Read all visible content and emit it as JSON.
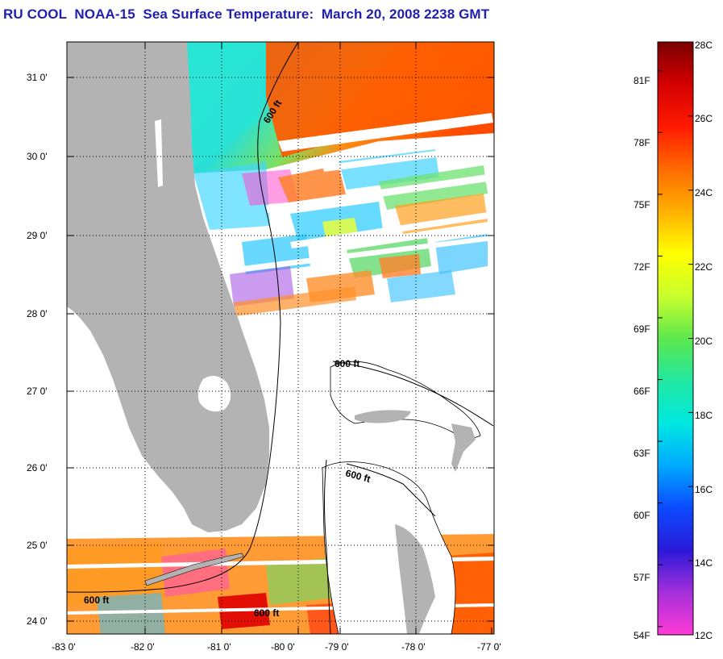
{
  "title": "RU COOL  NOAA-15  Sea Surface Temperature:  March 20, 2008 2238 GMT",
  "map": {
    "lat_ticks": [
      "31 0'",
      "30 0'",
      "29 0'",
      "28 0'",
      "27 0'",
      "26 0'",
      "25 0'",
      "24 0'"
    ],
    "lon_ticks": [
      "-83 0'",
      "-82 0'",
      "-81 0'",
      "-80 0'",
      "-79 0'",
      "-78 0'",
      "-77 0'"
    ],
    "isobath_labels": [
      "600 ft",
      "600 ft",
      "600 ft",
      "600 ft",
      "600 ft"
    ],
    "colors": {
      "land": "#b3b3b3",
      "no_data": "#ffffff",
      "grid": "#000000",
      "isobath": "#000000"
    }
  },
  "colorbar": {
    "fahrenheit_labels": [
      "81F",
      "78F",
      "75F",
      "72F",
      "69F",
      "66F",
      "63F",
      "60F",
      "57F",
      "54F"
    ],
    "celsius_labels": [
      "28C",
      "26C",
      "24C",
      "22C",
      "20C",
      "18C",
      "16C",
      "14C",
      "12C"
    ],
    "range_c": [
      12,
      28
    ],
    "stops": [
      "#ff3ad6",
      "#a42fd9",
      "#2a19d8",
      "#0b4bff",
      "#00aaff",
      "#00e8e0",
      "#21e8a0",
      "#5ee84d",
      "#c9ff2c",
      "#ffff00",
      "#ffb000",
      "#ff6a00",
      "#ff1a00",
      "#d40000",
      "#7a0000"
    ]
  }
}
